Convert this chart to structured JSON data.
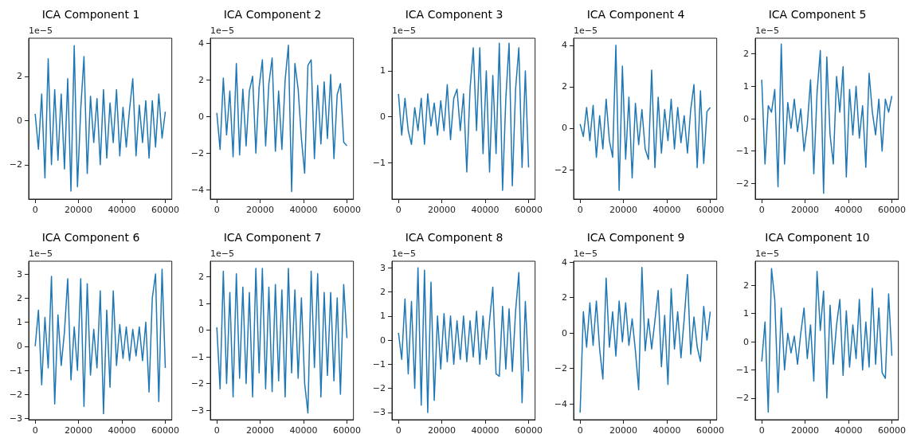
{
  "chart_data": [
    {
      "type": "line",
      "title": "ICA Component 1",
      "ylabel": "1e−5",
      "color": "#1f77b4",
      "xlim": [
        -3000,
        63000
      ],
      "xticks": [
        0,
        20000,
        40000,
        60000
      ],
      "ylim": [
        -3.56,
        3.73
      ],
      "yticks": [
        -2,
        0,
        2
      ],
      "x": [
        0,
        1500,
        3000,
        4500,
        6000,
        7500,
        9000,
        10500,
        12000,
        13500,
        15000,
        16500,
        18000,
        19500,
        21000,
        22500,
        24000,
        25500,
        27000,
        28500,
        30000,
        31500,
        33000,
        34500,
        36000,
        37500,
        39000,
        40500,
        42000,
        43500,
        45000,
        46500,
        48000,
        49500,
        51000,
        52500,
        54000,
        55500,
        57000,
        58500,
        60000
      ],
      "values": [
        0.3,
        -1.3,
        1.2,
        -2.6,
        2.8,
        -2.0,
        1.4,
        -1.8,
        1.2,
        -2.2,
        1.9,
        -3.2,
        3.4,
        -3.0,
        0.5,
        2.9,
        -2.4,
        1.1,
        -1.0,
        1.0,
        -2.0,
        1.4,
        -1.7,
        0.8,
        -1.0,
        1.4,
        -1.6,
        0.6,
        -1.2,
        0.5,
        1.9,
        -1.6,
        0.7,
        -1.0,
        0.9,
        -1.7,
        0.9,
        -1.2,
        1.2,
        -0.8,
        0.4
      ]
    },
    {
      "type": "line",
      "title": "ICA Component 2",
      "ylabel": "1e−5",
      "color": "#1f77b4",
      "xlim": [
        -3000,
        63000
      ],
      "xticks": [
        0,
        20000,
        40000,
        60000
      ],
      "ylim": [
        -4.51,
        4.28
      ],
      "yticks": [
        -4,
        -2,
        0,
        2,
        4
      ],
      "x": [
        0,
        1500,
        3000,
        4500,
        6000,
        7500,
        9000,
        10500,
        12000,
        13500,
        15000,
        16500,
        18000,
        19500,
        21000,
        22500,
        24000,
        25500,
        27000,
        28500,
        30000,
        31500,
        33000,
        34500,
        36000,
        37500,
        39000,
        40500,
        42000,
        43500,
        45000,
        46500,
        48000,
        49500,
        51000,
        52500,
        54000,
        55500,
        57000,
        58500,
        60000
      ],
      "values": [
        0.2,
        -1.8,
        2.1,
        -1.0,
        1.4,
        -2.2,
        2.9,
        -2.1,
        1.5,
        -1.6,
        1.4,
        2.2,
        -2.0,
        1.6,
        3.1,
        -1.6,
        1.8,
        3.2,
        -1.9,
        1.4,
        -1.8,
        2.0,
        3.9,
        -4.1,
        2.9,
        1.5,
        -1.2,
        -3.1,
        2.8,
        3.1,
        -2.3,
        1.7,
        -1.5,
        1.9,
        -1.2,
        2.3,
        -2.3,
        1.2,
        1.8,
        -1.4,
        -1.6
      ]
    },
    {
      "type": "line",
      "title": "ICA Component 3",
      "ylabel": "1e−5",
      "color": "#1f77b4",
      "xlim": [
        -3000,
        63000
      ],
      "xticks": [
        0,
        20000,
        40000,
        60000
      ],
      "ylim": [
        -1.79,
        1.71
      ],
      "yticks": [
        -1,
        0,
        1
      ],
      "x": [
        0,
        1500,
        3000,
        4500,
        6000,
        7500,
        9000,
        10500,
        12000,
        13500,
        15000,
        16500,
        18000,
        19500,
        21000,
        22500,
        24000,
        25500,
        27000,
        28500,
        30000,
        31500,
        33000,
        34500,
        36000,
        37500,
        39000,
        40500,
        42000,
        43500,
        45000,
        46500,
        48000,
        49500,
        51000,
        52500,
        54000,
        55500,
        57000,
        58500,
        60000
      ],
      "values": [
        0.5,
        -0.4,
        0.4,
        -0.3,
        -0.6,
        0.2,
        -0.3,
        0.4,
        -0.6,
        0.5,
        -0.2,
        0.3,
        -0.4,
        0.35,
        -0.3,
        0.7,
        -0.5,
        0.4,
        0.6,
        -0.3,
        0.5,
        -1.2,
        0.6,
        1.5,
        -0.3,
        1.5,
        -0.8,
        1.0,
        -1.2,
        0.9,
        -0.8,
        1.6,
        -1.6,
        0.4,
        1.6,
        -1.5,
        0.6,
        1.5,
        -1.1,
        1.0,
        -1.1
      ]
    },
    {
      "type": "line",
      "title": "ICA Component 4",
      "ylabel": "1e−5",
      "color": "#1f77b4",
      "xlim": [
        -3000,
        63000
      ],
      "xticks": [
        0,
        20000,
        40000,
        60000
      ],
      "ylim": [
        -3.42,
        4.34
      ],
      "yticks": [
        -2,
        0,
        2,
        4
      ],
      "x": [
        0,
        1500,
        3000,
        4500,
        6000,
        7500,
        9000,
        10500,
        12000,
        13500,
        15000,
        16500,
        18000,
        19500,
        21000,
        22500,
        24000,
        25500,
        27000,
        28500,
        30000,
        31500,
        33000,
        34500,
        36000,
        37500,
        39000,
        40500,
        42000,
        43500,
        45000,
        46500,
        48000,
        49500,
        51000,
        52500,
        54000,
        55500,
        57000,
        58500,
        60000
      ],
      "values": [
        0.2,
        -0.4,
        1.0,
        -0.6,
        1.1,
        -1.4,
        0.6,
        -1.0,
        1.4,
        -0.6,
        -1.4,
        4.0,
        -3.0,
        3.0,
        -1.5,
        1.5,
        -2.4,
        1.2,
        -0.8,
        0.9,
        -1.0,
        -1.5,
        2.8,
        -1.9,
        1.5,
        -1.2,
        0.9,
        -0.6,
        1.4,
        -1.0,
        1.0,
        -0.7,
        0.6,
        -1.2,
        0.9,
        2.1,
        -1.9,
        1.8,
        -1.7,
        0.8,
        1.0
      ]
    },
    {
      "type": "line",
      "title": "ICA Component 5",
      "ylabel": "1e−5",
      "color": "#1f77b4",
      "xlim": [
        -3000,
        63000
      ],
      "xticks": [
        0,
        20000,
        40000,
        60000
      ],
      "ylim": [
        -2.48,
        2.48
      ],
      "yticks": [
        -2,
        -1,
        0,
        1,
        2
      ],
      "x": [
        0,
        1500,
        3000,
        4500,
        6000,
        7500,
        9000,
        10500,
        12000,
        13500,
        15000,
        16500,
        18000,
        19500,
        21000,
        22500,
        24000,
        25500,
        27000,
        28500,
        30000,
        31500,
        33000,
        34500,
        36000,
        37500,
        39000,
        40500,
        42000,
        43500,
        45000,
        46500,
        48000,
        49500,
        51000,
        52500,
        54000,
        55500,
        57000,
        58500,
        60000
      ],
      "values": [
        1.2,
        -1.4,
        0.4,
        0.2,
        0.9,
        -2.1,
        2.3,
        -1.4,
        0.5,
        -0.3,
        0.6,
        -0.4,
        0.3,
        -1.0,
        -0.2,
        1.2,
        -1.7,
        0.8,
        2.1,
        -2.3,
        1.9,
        -0.5,
        -1.4,
        1.3,
        0.2,
        1.6,
        -1.8,
        0.9,
        -0.5,
        1.0,
        -0.6,
        0.4,
        -1.5,
        1.4,
        0.2,
        -0.5,
        0.6,
        -1.0,
        0.6,
        0.2,
        0.7
      ]
    },
    {
      "type": "line",
      "title": "ICA Component 6",
      "ylabel": "1e−5",
      "color": "#1f77b4",
      "xlim": [
        -3000,
        63000
      ],
      "xticks": [
        0,
        20000,
        40000,
        60000
      ],
      "ylim": [
        -3.05,
        3.53
      ],
      "yticks": [
        -3,
        -2,
        -1,
        0,
        1,
        2,
        3
      ],
      "x": [
        0,
        1500,
        3000,
        4500,
        6000,
        7500,
        9000,
        10500,
        12000,
        13500,
        15000,
        16500,
        18000,
        19500,
        21000,
        22500,
        24000,
        25500,
        27000,
        28500,
        30000,
        31500,
        33000,
        34500,
        36000,
        37500,
        39000,
        40500,
        42000,
        43500,
        45000,
        46500,
        48000,
        49500,
        51000,
        52500,
        54000,
        55500,
        57000,
        58500,
        60000
      ],
      "values": [
        0.0,
        1.5,
        -1.6,
        1.2,
        -0.9,
        2.9,
        -2.4,
        1.3,
        -0.8,
        0.6,
        2.8,
        -1.4,
        0.8,
        -1.0,
        2.8,
        -2.5,
        2.6,
        -1.2,
        0.7,
        -0.9,
        2.3,
        -2.8,
        1.5,
        -1.7,
        2.3,
        -0.8,
        0.9,
        -0.5,
        0.8,
        -0.6,
        0.7,
        -0.4,
        0.8,
        -0.6,
        1.0,
        -1.9,
        2.0,
        3.0,
        -2.3,
        3.2,
        -0.9
      ]
    },
    {
      "type": "line",
      "title": "ICA Component 7",
      "ylabel": "1e−5",
      "color": "#1f77b4",
      "xlim": [
        -3000,
        63000
      ],
      "xticks": [
        0,
        20000,
        40000,
        60000
      ],
      "ylim": [
        -3.35,
        2.57
      ],
      "yticks": [
        -3,
        -2,
        -1,
        0,
        1,
        2
      ],
      "x": [
        0,
        1500,
        3000,
        4500,
        6000,
        7500,
        9000,
        10500,
        12000,
        13500,
        15000,
        16500,
        18000,
        19500,
        21000,
        22500,
        24000,
        25500,
        27000,
        28500,
        30000,
        31500,
        33000,
        34500,
        36000,
        37500,
        39000,
        40500,
        42000,
        43500,
        45000,
        46500,
        48000,
        49500,
        51000,
        52500,
        54000,
        55500,
        57000,
        58500,
        60000
      ],
      "values": [
        0.1,
        -2.2,
        2.2,
        -2.0,
        1.4,
        -2.5,
        2.1,
        -1.8,
        1.6,
        -2.0,
        1.4,
        -2.5,
        2.3,
        -1.6,
        2.3,
        -2.2,
        1.6,
        -2.3,
        1.7,
        -1.9,
        1.5,
        -2.5,
        2.3,
        -1.6,
        1.5,
        -1.8,
        1.2,
        -2.0,
        -3.1,
        2.2,
        -1.4,
        2.1,
        -2.5,
        1.4,
        -1.7,
        1.4,
        -1.9,
        1.2,
        -2.4,
        1.7,
        -0.3
      ]
    },
    {
      "type": "line",
      "title": "ICA Component 8",
      "ylabel": "1e−5",
      "color": "#1f77b4",
      "xlim": [
        -3000,
        63000
      ],
      "xticks": [
        0,
        20000,
        40000,
        60000
      ],
      "ylim": [
        -3.3,
        3.27
      ],
      "yticks": [
        -3,
        -2,
        -1,
        0,
        1,
        2,
        3
      ],
      "x": [
        0,
        1500,
        3000,
        4500,
        6000,
        7500,
        9000,
        10500,
        12000,
        13500,
        15000,
        16500,
        18000,
        19500,
        21000,
        22500,
        24000,
        25500,
        27000,
        28500,
        30000,
        31500,
        33000,
        34500,
        36000,
        37500,
        39000,
        40500,
        42000,
        43500,
        45000,
        46500,
        48000,
        49500,
        51000,
        52500,
        54000,
        55500,
        57000,
        58500,
        60000
      ],
      "values": [
        0.3,
        -0.8,
        1.7,
        -1.4,
        1.6,
        -2.0,
        3.0,
        -2.7,
        2.9,
        -3.0,
        2.4,
        -2.5,
        1.0,
        -1.2,
        1.1,
        -0.9,
        1.0,
        -1.0,
        0.8,
        -0.8,
        1.0,
        -0.9,
        0.8,
        -0.7,
        1.2,
        -1.0,
        1.0,
        -0.8,
        0.8,
        2.2,
        -1.4,
        -1.5,
        1.4,
        -1.2,
        1.3,
        -1.3,
        1.2,
        2.8,
        -2.6,
        1.6,
        -1.3
      ]
    },
    {
      "type": "line",
      "title": "ICA Component 9",
      "ylabel": "1e−5",
      "color": "#1f77b4",
      "xlim": [
        -3000,
        63000
      ],
      "xticks": [
        0,
        20000,
        40000,
        60000
      ],
      "ylim": [
        -4.89,
        4.05
      ],
      "yticks": [
        -4,
        -2,
        0,
        2,
        4
      ],
      "x": [
        0,
        1500,
        3000,
        4500,
        6000,
        7500,
        9000,
        10500,
        12000,
        13500,
        15000,
        16500,
        18000,
        19500,
        21000,
        22500,
        24000,
        25500,
        27000,
        28500,
        30000,
        31500,
        33000,
        34500,
        36000,
        37500,
        39000,
        40500,
        42000,
        43500,
        45000,
        46500,
        48000,
        49500,
        51000,
        52500,
        54000,
        55500,
        57000,
        58500,
        60000
      ],
      "values": [
        -4.5,
        1.2,
        -0.8,
        1.7,
        -0.7,
        1.8,
        -0.9,
        -2.6,
        3.1,
        -0.8,
        1.2,
        -1.3,
        1.8,
        -0.5,
        1.7,
        -0.7,
        0.8,
        -1.0,
        -3.2,
        3.7,
        -1.0,
        0.8,
        -0.9,
        0.7,
        2.4,
        -1.9,
        1.0,
        -2.9,
        2.5,
        -0.9,
        1.2,
        -1.4,
        0.8,
        3.3,
        -1.2,
        0.9,
        -0.8,
        -1.6,
        1.5,
        -0.4,
        1.2
      ]
    },
    {
      "type": "line",
      "title": "ICA Component 10",
      "ylabel": "1e−5",
      "color": "#1f77b4",
      "xlim": [
        -3000,
        63000
      ],
      "xticks": [
        0,
        20000,
        40000,
        60000
      ],
      "ylim": [
        -2.77,
        2.86
      ],
      "yticks": [
        -2,
        -1,
        0,
        1,
        2
      ],
      "x": [
        0,
        1500,
        3000,
        4500,
        6000,
        7500,
        9000,
        10500,
        12000,
        13500,
        15000,
        16500,
        18000,
        19500,
        21000,
        22500,
        24000,
        25500,
        27000,
        28500,
        30000,
        31500,
        33000,
        34500,
        36000,
        37500,
        39000,
        40500,
        42000,
        43500,
        45000,
        46500,
        48000,
        49500,
        51000,
        52500,
        54000,
        55500,
        57000,
        58500,
        60000
      ],
      "values": [
        -0.7,
        0.7,
        -2.5,
        2.6,
        1.5,
        -1.8,
        1.2,
        -1.0,
        0.3,
        -0.4,
        0.2,
        -0.8,
        0.3,
        1.2,
        -0.6,
        0.6,
        -1.4,
        2.5,
        0.4,
        1.8,
        -2.0,
        1.3,
        -0.8,
        0.6,
        1.5,
        -1.2,
        1.1,
        -0.9,
        0.6,
        -0.6,
        1.5,
        -1.0,
        0.7,
        -0.9,
        1.9,
        -0.8,
        1.2,
        -1.1,
        -1.3,
        1.7,
        -0.5
      ]
    }
  ]
}
